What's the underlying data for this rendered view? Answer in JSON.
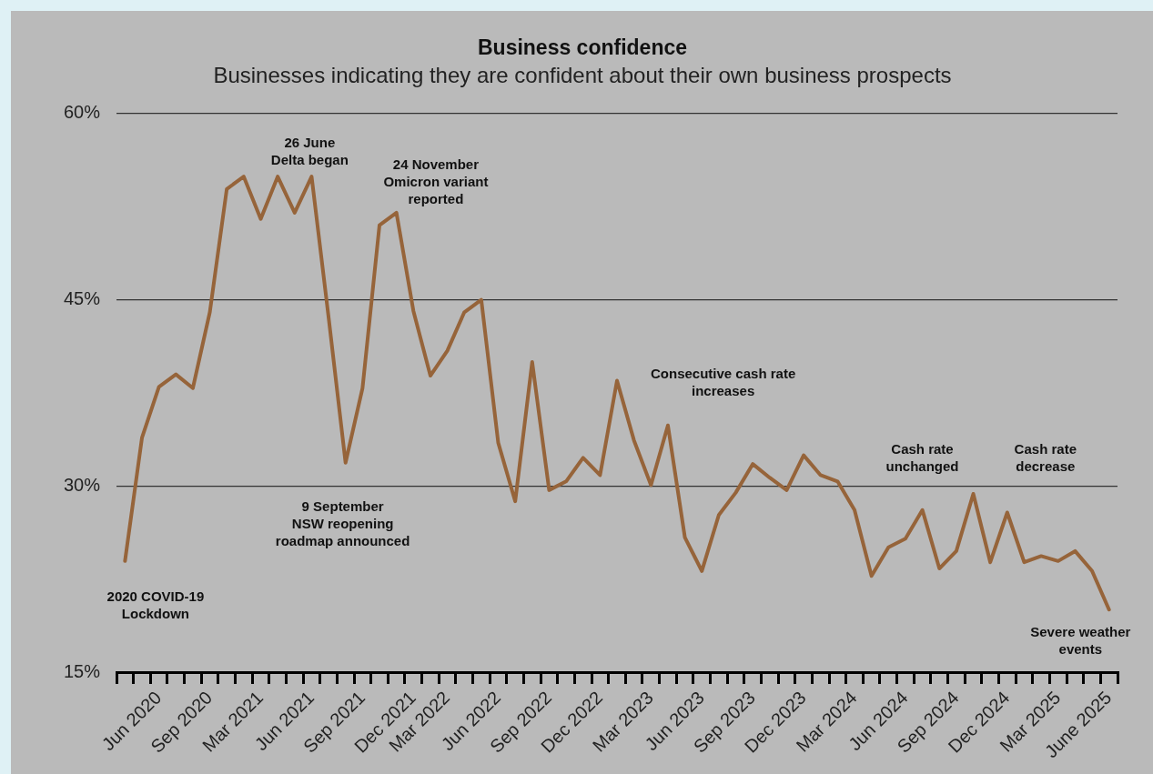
{
  "chart_data": {
    "type": "line",
    "title": "Business confidence",
    "subtitle": "Businesses indicating they are confident about their own business prospects",
    "categories": [
      null,
      null,
      "Jun 2020",
      null,
      null,
      "Sep 2020",
      null,
      null,
      "Mar 2021",
      null,
      null,
      "Jun 2021",
      null,
      null,
      "Sep 2021",
      null,
      null,
      "Dec 2021",
      null,
      "Mar 2022",
      null,
      null,
      "Jun 2022",
      null,
      null,
      "Sep 2022",
      null,
      null,
      "Dec 2022",
      null,
      null,
      "Mar 2023",
      null,
      null,
      "Jun 2023",
      null,
      null,
      "Sep 2023",
      null,
      null,
      "Dec 2023",
      null,
      null,
      "Mar 2024",
      null,
      null,
      "Jun 2024",
      null,
      null,
      "Sep 2024",
      null,
      null,
      "Dec 2024",
      null,
      null,
      "Mar 2025",
      null,
      null,
      "June 2025"
    ],
    "series": [
      {
        "color": "#96643a",
        "values": [
          24.0,
          33.9,
          38.0,
          39.0,
          37.9,
          44.0,
          53.9,
          54.9,
          51.5,
          54.9,
          52.0,
          54.9,
          43.6,
          31.9,
          37.9,
          51.0,
          52.0,
          44.1,
          38.9,
          40.9,
          44.0,
          45.0,
          33.5,
          28.8,
          40.0,
          29.7,
          30.4,
          32.3,
          30.9,
          38.5,
          33.7,
          30.1,
          34.9,
          25.9,
          23.2,
          27.7,
          29.5,
          31.8,
          30.7,
          29.7,
          32.5,
          30.9,
          30.4,
          28.1,
          22.8,
          25.1,
          25.8,
          28.1,
          23.4,
          24.8,
          29.4,
          23.9,
          27.9,
          23.9,
          24.4,
          24.0,
          24.8,
          23.2,
          20.1
        ]
      }
    ],
    "ylim": [
      15,
      60
    ],
    "yticks": [
      {
        "value": 15,
        "label": "15%"
      },
      {
        "value": 30,
        "label": "30%"
      },
      {
        "value": 45,
        "label": "45%"
      },
      {
        "value": 60,
        "label": "60%"
      }
    ],
    "grid": "y",
    "legend": false,
    "marker": "none",
    "line_style": "solid",
    "annotations": [
      "2020 COVID-19\nLockdown",
      "26 June\nDelta began",
      "24 November\nOmicron variant\nreported",
      "9 September\nNSW reopening\nroadmap announced",
      "Consecutive cash rate\nincreases",
      "Cash rate\nunchanged",
      "Cash rate\ndecrease",
      "Severe weather\nevents"
    ]
  }
}
